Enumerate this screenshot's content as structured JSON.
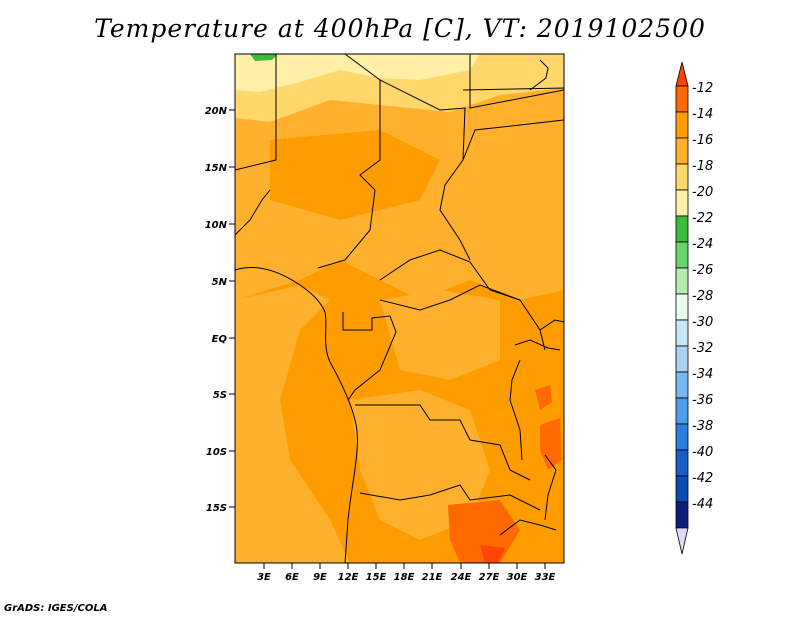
{
  "title": "Temperature at 400hPa [C], VT: 2019102500",
  "credit": "GrADS: IGES/COLA",
  "map": {
    "lat_ticks": [
      "20N",
      "15N",
      "10N",
      "5N",
      "EQ",
      "5S",
      "10S",
      "15S"
    ],
    "lon_ticks": [
      "3E",
      "6E",
      "9E",
      "12E",
      "15E",
      "18E",
      "21E",
      "24E",
      "27E",
      "30E",
      "33E"
    ]
  },
  "colorbar": {
    "labels": [
      "-12",
      "-14",
      "-16",
      "-18",
      "-20",
      "-22",
      "-24",
      "-26",
      "-28",
      "-30",
      "-32",
      "-34",
      "-36",
      "-38",
      "-40",
      "-42",
      "-44"
    ],
    "colors": [
      "#ff4500",
      "#ff6a00",
      "#ff9c00",
      "#ffb12e",
      "#ffd76a",
      "#fff0a8",
      "#3cbb3c",
      "#69d46c",
      "#b4ecb0",
      "#e8fff0",
      "#c8e6fa",
      "#a8d2f4",
      "#78b8f0",
      "#4e9de8",
      "#2c7fe0",
      "#1c5ec8",
      "#0c4bb4",
      "#0a1e7a",
      "#dcdcf8"
    ]
  }
}
